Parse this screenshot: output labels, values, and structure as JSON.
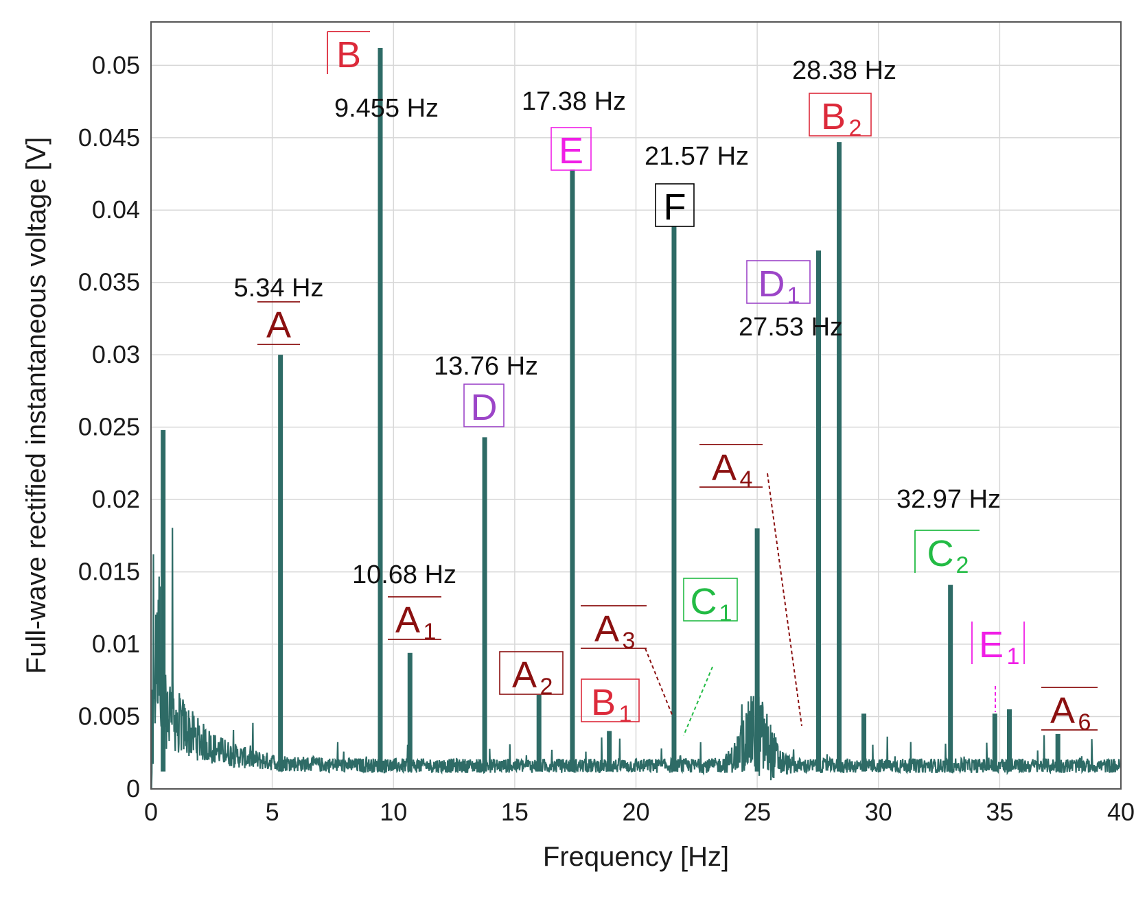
{
  "chart_data": {
    "type": "line",
    "xlabel": "Frequency [Hz]",
    "ylabel": "Full-wave rectified instantaneous voltage [V]",
    "xlim": [
      0,
      40
    ],
    "ylim": [
      0,
      0.053
    ],
    "grid": true,
    "xticks": [
      "0",
      "5",
      "10",
      "15",
      "20",
      "25",
      "30",
      "35",
      "40"
    ],
    "yticks": [
      "0",
      "0.005",
      "0.01",
      "0.015",
      "0.02",
      "0.025",
      "0.03",
      "0.035",
      "0.04",
      "0.045",
      "0.05"
    ],
    "series_color": "#2e6b66",
    "peaks": [
      {
        "x": 0.5,
        "y": 0.0248
      },
      {
        "x": 5.34,
        "y": 0.03
      },
      {
        "x": 9.455,
        "y": 0.0512
      },
      {
        "x": 10.68,
        "y": 0.0094
      },
      {
        "x": 13.76,
        "y": 0.0243
      },
      {
        "x": 16.0,
        "y": 0.0065
      },
      {
        "x": 17.38,
        "y": 0.0428
      },
      {
        "x": 18.9,
        "y": 0.004
      },
      {
        "x": 21.57,
        "y": 0.0389
      },
      {
        "x": 25.0,
        "y": 0.018
      },
      {
        "x": 27.53,
        "y": 0.0372
      },
      {
        "x": 28.38,
        "y": 0.0447
      },
      {
        "x": 29.4,
        "y": 0.0052
      },
      {
        "x": 32.97,
        "y": 0.0141
      },
      {
        "x": 34.8,
        "y": 0.0052
      },
      {
        "x": 35.4,
        "y": 0.0055
      },
      {
        "x": 37.4,
        "y": 0.0038
      }
    ],
    "annotations": [
      {
        "name": "A",
        "sub": "",
        "freq": "5.34 Hz",
        "color": "#8b1010"
      },
      {
        "name": "B",
        "sub": "",
        "freq": "9.455 Hz",
        "color": "#dc2a3a"
      },
      {
        "name": "A",
        "sub": "1",
        "freq": "10.68 Hz",
        "color": "#8b1010"
      },
      {
        "name": "D",
        "sub": "",
        "freq": "13.76 Hz",
        "color": "#9c45c8"
      },
      {
        "name": "A",
        "sub": "2",
        "freq": "",
        "color": "#8b1010"
      },
      {
        "name": "E",
        "sub": "",
        "freq": "17.38 Hz",
        "color": "#f01ee6"
      },
      {
        "name": "B",
        "sub": "1",
        "freq": "",
        "color": "#dc2a3a"
      },
      {
        "name": "A",
        "sub": "3",
        "freq": "",
        "color": "#8b1010"
      },
      {
        "name": "F",
        "sub": "",
        "freq": "21.57 Hz",
        "color": "#000000"
      },
      {
        "name": "C",
        "sub": "1",
        "freq": "",
        "color": "#22bb44"
      },
      {
        "name": "A",
        "sub": "4",
        "freq": "",
        "color": "#8b1010"
      },
      {
        "name": "D",
        "sub": "1",
        "freq": "27.53 Hz",
        "color": "#9c45c8"
      },
      {
        "name": "B",
        "sub": "2",
        "freq": "28.38 Hz",
        "color": "#dc2a3a"
      },
      {
        "name": "C",
        "sub": "2",
        "freq": "32.97 Hz",
        "color": "#22bb44"
      },
      {
        "name": "E",
        "sub": "1",
        "freq": "",
        "color": "#f01ee6"
      },
      {
        "name": "A",
        "sub": "6",
        "freq": "",
        "color": "#8b1010"
      }
    ]
  }
}
